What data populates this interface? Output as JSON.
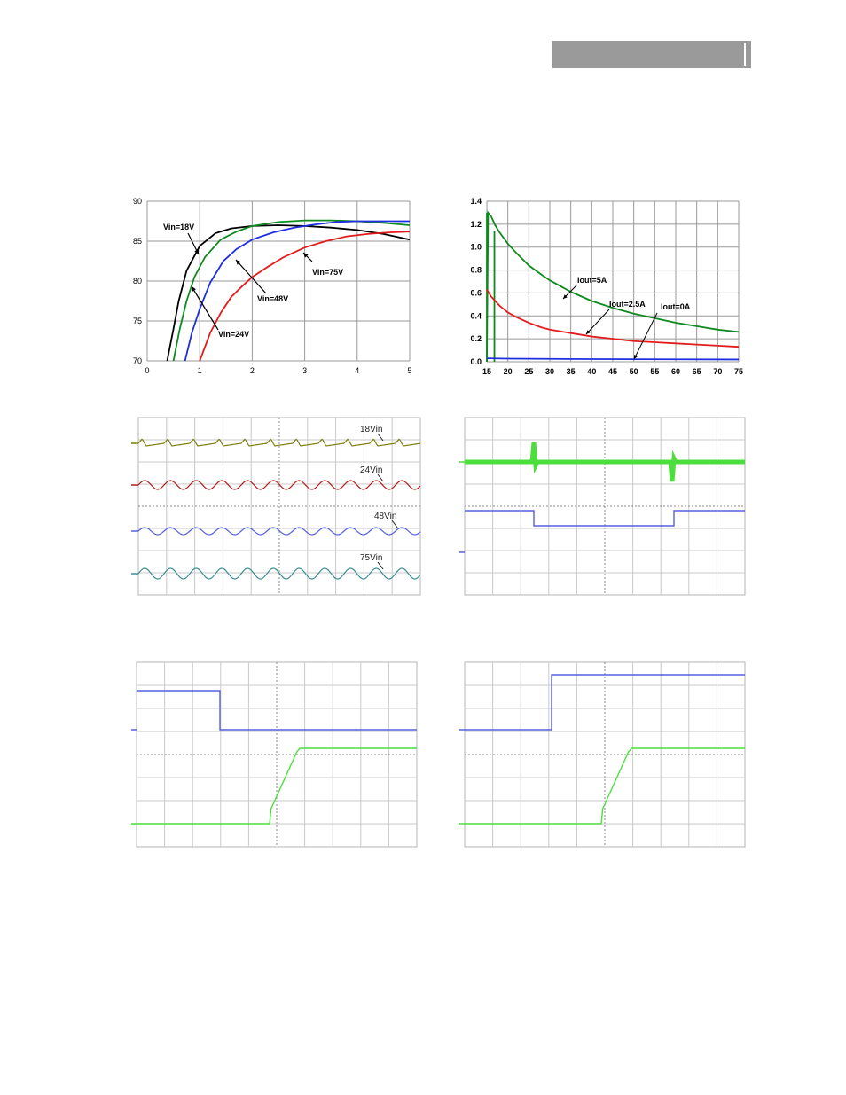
{
  "colors": {
    "black": "#000000",
    "green": "#0f8a1f",
    "blue": "#1f2fe0",
    "red": "#e41b1b",
    "olive": "#7b7d10",
    "scope_red": "#b31e1e",
    "scope_blue": "#5560e0",
    "teal": "#3a8f94",
    "scope_green": "#4cde3c",
    "grid": "#9a9a9a",
    "scope_grid": "#c9c9c9"
  },
  "chart_data": [
    {
      "type": "line",
      "x_ticks": [
        "0",
        "1",
        "2",
        "3",
        "4",
        "5"
      ],
      "y_ticks": [
        "70",
        "75",
        "80",
        "85",
        "90"
      ],
      "xlim": [
        0,
        5
      ],
      "ylim": [
        70,
        90
      ],
      "series": [
        {
          "name": "Vin=18V",
          "color": "#000000",
          "x": [
            0.38,
            0.5,
            0.6,
            0.75,
            1.0,
            1.3,
            1.6,
            2.0,
            2.5,
            3.0,
            3.5,
            4.0,
            4.5,
            5.0
          ],
          "y": [
            70,
            74,
            77.5,
            81.3,
            84.4,
            86.0,
            86.6,
            86.9,
            87.0,
            86.9,
            86.7,
            86.4,
            85.9,
            85.2
          ]
        },
        {
          "name": "Vin=24V",
          "color": "#0f8a1f",
          "x": [
            0.5,
            0.62,
            0.75,
            0.9,
            1.1,
            1.4,
            1.7,
            2.0,
            2.5,
            3.0,
            3.5,
            4.0,
            4.5,
            5.0
          ],
          "y": [
            70,
            74,
            77.5,
            80.5,
            83.0,
            85.2,
            86.2,
            86.9,
            87.4,
            87.6,
            87.6,
            87.5,
            87.3,
            87.0
          ]
        },
        {
          "name": "Vin=48V",
          "color": "#1f2fe0",
          "x": [
            0.72,
            0.85,
            1.0,
            1.2,
            1.45,
            1.7,
            2.0,
            2.4,
            2.8,
            3.2,
            3.6,
            4.0,
            4.5,
            5.0
          ],
          "y": [
            70,
            73.5,
            76.5,
            79.8,
            82.5,
            84.0,
            85.2,
            86.1,
            86.7,
            87.1,
            87.4,
            87.5,
            87.5,
            87.5
          ]
        },
        {
          "name": "Vin=75V",
          "color": "#e41b1b",
          "x": [
            1.0,
            1.2,
            1.4,
            1.6,
            1.8,
            2.0,
            2.3,
            2.6,
            3.0,
            3.4,
            3.8,
            4.2,
            4.6,
            5.0
          ],
          "y": [
            70,
            73.5,
            76.0,
            78.0,
            79.3,
            80.5,
            81.8,
            83.0,
            84.2,
            85.0,
            85.6,
            85.9,
            86.1,
            86.2
          ]
        }
      ],
      "annotations": [
        "Vin=18V",
        "Vin=24V",
        "Vin=48V",
        "Vin=75V"
      ]
    },
    {
      "type": "line",
      "x_ticks": [
        "15",
        "20",
        "25",
        "30",
        "35",
        "40",
        "45",
        "50",
        "55",
        "60",
        "65",
        "70",
        "75"
      ],
      "y_ticks": [
        "0.0",
        "0.2",
        "0.4",
        "0.6",
        "0.8",
        "1.0",
        "1.2",
        "1.4"
      ],
      "xlim": [
        15,
        75
      ],
      "ylim": [
        0,
        1.4
      ],
      "series": [
        {
          "name": "Iout=5A",
          "color": "#0f8a1f",
          "x": [
            15,
            15.3,
            16,
            17,
            18,
            20,
            22,
            25,
            28,
            30,
            35,
            40,
            45,
            50,
            55,
            60,
            65,
            70,
            75
          ],
          "y": [
            0,
            1.3,
            1.27,
            1.19,
            1.13,
            1.03,
            0.95,
            0.84,
            0.76,
            0.71,
            0.61,
            0.53,
            0.47,
            0.42,
            0.38,
            0.34,
            0.31,
            0.28,
            0.26
          ]
        },
        {
          "name": "Iout=2.5A",
          "color": "#e41b1b",
          "x": [
            15,
            16,
            18,
            20,
            22,
            25,
            28,
            30,
            35,
            40,
            45,
            50,
            55,
            60,
            65,
            70,
            75
          ],
          "y": [
            0.63,
            0.57,
            0.49,
            0.43,
            0.39,
            0.34,
            0.3,
            0.28,
            0.25,
            0.22,
            0.2,
            0.18,
            0.17,
            0.16,
            0.15,
            0.14,
            0.13
          ]
        },
        {
          "name": "Iout=0A",
          "color": "#1f2fe0",
          "x": [
            15,
            20,
            30,
            40,
            50,
            60,
            75
          ],
          "y": [
            0.03,
            0.027,
            0.025,
            0.023,
            0.022,
            0.021,
            0.02
          ]
        }
      ],
      "annotations": [
        "Iout=5A",
        "Iout=2.5A",
        "Iout=0A"
      ]
    },
    {
      "type": "line",
      "trace_labels": [
        "18Vin",
        "24Vin",
        "48Vin",
        "75Vin"
      ]
    },
    {
      "type": "line",
      "traces": [
        "output voltage (green)",
        "load current step (blue)"
      ]
    },
    {
      "type": "line",
      "traces": [
        "input step (blue)",
        "output rise (green)"
      ]
    },
    {
      "type": "line",
      "traces": [
        "input step (blue)",
        "output rise (green)"
      ]
    }
  ]
}
